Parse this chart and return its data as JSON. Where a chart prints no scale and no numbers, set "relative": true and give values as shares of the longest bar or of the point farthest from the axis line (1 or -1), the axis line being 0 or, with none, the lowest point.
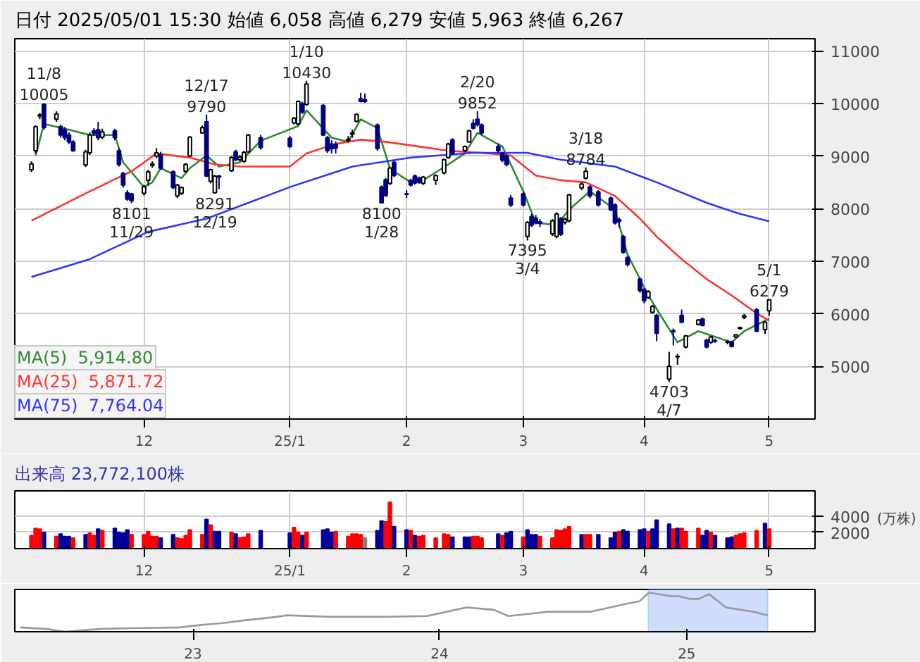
{
  "chart_data": [
    {
      "type": "candlestick",
      "title": "日付 2025/05/01 15:30 始値 6,058 高値 6,279 安値 5,963 終値 6,267",
      "x": [
        "2024-11-05",
        "2024-11-06",
        "2024-11-07",
        "2024-11-08",
        "2024-11-11",
        "2024-11-12",
        "2024-11-13",
        "2024-11-14",
        "2024-11-15",
        "2024-11-18",
        "2024-11-19",
        "2024-11-20",
        "2024-11-21",
        "2024-11-22",
        "2024-11-25",
        "2024-11-26",
        "2024-11-27",
        "2024-11-28",
        "2024-11-29",
        "2024-12-02",
        "2024-12-03",
        "2024-12-04",
        "2024-12-05",
        "2024-12-06",
        "2024-12-09",
        "2024-12-10",
        "2024-12-11",
        "2024-12-12",
        "2024-12-13",
        "2024-12-16",
        "2024-12-17",
        "2024-12-18",
        "2024-12-19",
        "2024-12-20",
        "2024-12-23",
        "2024-12-24",
        "2024-12-25",
        "2024-12-26",
        "2024-12-27",
        "2024-12-30",
        "2025-01-06",
        "2025-01-07",
        "2025-01-08",
        "2025-01-09",
        "2025-01-10",
        "2025-01-14",
        "2025-01-15",
        "2025-01-16",
        "2025-01-17",
        "2025-01-20",
        "2025-01-21",
        "2025-01-22",
        "2025-01-23",
        "2025-01-24",
        "2025-01-27",
        "2025-01-28",
        "2025-01-29",
        "2025-01-30",
        "2025-01-31",
        "2025-02-03",
        "2025-02-04",
        "2025-02-05",
        "2025-02-06",
        "2025-02-07",
        "2025-02-10",
        "2025-02-12",
        "2025-02-13",
        "2025-02-14",
        "2025-02-17",
        "2025-02-18",
        "2025-02-19",
        "2025-02-20",
        "2025-02-21",
        "2025-02-25",
        "2025-02-26",
        "2025-02-27",
        "2025-02-28",
        "2025-03-03",
        "2025-03-04",
        "2025-03-05",
        "2025-03-06",
        "2025-03-07",
        "2025-03-10",
        "2025-03-11",
        "2025-03-12",
        "2025-03-13",
        "2025-03-14",
        "2025-03-17",
        "2025-03-18",
        "2025-03-19",
        "2025-03-21",
        "2025-03-24",
        "2025-03-25",
        "2025-03-26",
        "2025-03-27",
        "2025-03-28",
        "2025-03-31",
        "2025-04-01",
        "2025-04-02",
        "2025-04-03",
        "2025-04-04",
        "2025-04-07",
        "2025-04-08",
        "2025-04-09",
        "2025-04-10",
        "2025-04-11",
        "2025-04-14",
        "2025-04-15",
        "2025-04-16",
        "2025-04-17",
        "2025-04-18",
        "2025-04-21",
        "2025-04-22",
        "2025-04-23",
        "2025-04-24",
        "2025-04-25",
        "2025-04-28",
        "2025-04-30",
        "2025-05-01"
      ],
      "ohlc": [
        [
          8740,
          8900,
          8700,
          8850
        ],
        [
          9100,
          9580,
          9050,
          9560
        ],
        [
          9760,
          9820,
          9700,
          9780
        ],
        [
          9980,
          10005,
          9500,
          9540
        ],
        [
          9700,
          9850,
          9650,
          9800
        ],
        [
          9560,
          9600,
          9350,
          9400
        ],
        [
          9500,
          9550,
          9300,
          9350
        ],
        [
          9400,
          9450,
          9230,
          9270
        ],
        [
          9270,
          9300,
          9080,
          9100
        ],
        [
          8830,
          9120,
          8790,
          9080
        ],
        [
          9060,
          9450,
          9020,
          9400
        ],
        [
          9480,
          9530,
          9380,
          9430
        ],
        [
          9500,
          9650,
          9300,
          9350
        ],
        [
          9360,
          9520,
          9320,
          9460
        ],
        [
          9480,
          9520,
          9300,
          9350
        ],
        [
          9100,
          9150,
          8800,
          8840
        ],
        [
          8670,
          8700,
          8400,
          8450
        ],
        [
          8300,
          8350,
          8150,
          8180
        ],
        [
          8280,
          8300,
          8101,
          8150
        ],
        [
          8290,
          8450,
          8250,
          8420
        ],
        [
          8540,
          8740,
          8440,
          8700
        ],
        [
          8820,
          8900,
          8780,
          8850
        ],
        [
          9000,
          9150,
          8960,
          9060
        ],
        [
          9020,
          9080,
          8740,
          8770
        ],
        [
          8700,
          8730,
          8370,
          8400
        ],
        [
          8240,
          8470,
          8200,
          8450
        ],
        [
          8290,
          8420,
          8260,
          8400
        ],
        [
          8710,
          8870,
          8680,
          8840
        ],
        [
          9000,
          9380,
          8980,
          9360
        ],
        [
          9440,
          9580,
          9420,
          9540
        ],
        [
          9650,
          9790,
          8600,
          8620
        ],
        [
          8520,
          8760,
          8480,
          8740
        ],
        [
          8300,
          8640,
          8291,
          8620
        ],
        [
          8620,
          8640,
          8370,
          8600
        ],
        [
          8720,
          9000,
          8700,
          8970
        ],
        [
          9080,
          9120,
          8900,
          8930
        ],
        [
          8930,
          9020,
          8900,
          8980
        ],
        [
          8900,
          9100,
          8870,
          9070
        ],
        [
          9080,
          9420,
          9060,
          9400
        ],
        [
          9350,
          9400,
          9120,
          9160
        ],
        [
          9340,
          9380,
          9150,
          9180
        ],
        [
          9630,
          9740,
          9600,
          9720
        ],
        [
          9610,
          10060,
          9580,
          10040
        ],
        [
          10000,
          10030,
          9800,
          9830
        ],
        [
          9980,
          10430,
          9960,
          10370
        ],
        [
          9960,
          9990,
          9380,
          9400
        ],
        [
          9350,
          9380,
          9060,
          9100
        ],
        [
          9230,
          9300,
          9050,
          9140
        ],
        [
          9220,
          9280,
          9050,
          9150
        ],
        [
          9300,
          9380,
          9260,
          9320
        ],
        [
          9420,
          9500,
          9350,
          9440
        ],
        [
          9660,
          9810,
          9640,
          9790
        ],
        [
          10090,
          10200,
          10020,
          10040
        ],
        [
          10070,
          10190,
          10010,
          10040
        ],
        [
          9590,
          9620,
          9100,
          9140
        ],
        [
          8410,
          8440,
          8100,
          8110
        ],
        [
          8550,
          8580,
          8220,
          8250
        ],
        [
          8480,
          8800,
          8450,
          8770
        ],
        [
          8880,
          8920,
          8600,
          8630
        ],
        [
          8280,
          8350,
          8200,
          8270
        ],
        [
          8540,
          8570,
          8420,
          8450
        ],
        [
          8620,
          8650,
          8460,
          8490
        ],
        [
          8580,
          8610,
          8470,
          8500
        ],
        [
          8480,
          8620,
          8450,
          8600
        ],
        [
          8540,
          8650,
          8450,
          8630
        ],
        [
          8680,
          8950,
          8650,
          8930
        ],
        [
          8970,
          9250,
          8950,
          9230
        ],
        [
          9310,
          9340,
          9020,
          9050
        ],
        [
          9100,
          9200,
          9080,
          9180
        ],
        [
          9270,
          9500,
          9250,
          9480
        ],
        [
          9620,
          9700,
          9500,
          9530
        ],
        [
          9700,
          9852,
          9560,
          9600
        ],
        [
          9590,
          9620,
          9400,
          9440
        ],
        [
          9180,
          9240,
          9060,
          9100
        ],
        [
          9050,
          9080,
          8880,
          8920
        ],
        [
          9000,
          9030,
          8800,
          8840
        ],
        [
          8200,
          8260,
          8030,
          8070
        ],
        [
          8280,
          8320,
          8040,
          8070
        ],
        [
          7470,
          7760,
          7395,
          7740
        ],
        [
          7850,
          7900,
          7650,
          7690
        ],
        [
          7820,
          7880,
          7700,
          7730
        ],
        [
          7750,
          7800,
          7650,
          7720
        ],
        [
          7520,
          7800,
          7480,
          7770
        ],
        [
          7470,
          7930,
          7440,
          7900
        ],
        [
          7810,
          7840,
          7480,
          7510
        ],
        [
          7740,
          7830,
          7700,
          7800
        ],
        [
          7770,
          8280,
          7740,
          8260
        ],
        [
          8390,
          8500,
          8350,
          8470
        ],
        [
          8580,
          8784,
          8550,
          8710
        ],
        [
          8410,
          8450,
          8200,
          8240
        ],
        [
          8320,
          8350,
          8040,
          8070
        ],
        [
          8200,
          8230,
          7950,
          7980
        ],
        [
          8070,
          8100,
          7700,
          7730
        ],
        [
          7790,
          7830,
          7640,
          7760
        ],
        [
          7470,
          7500,
          7140,
          7170
        ],
        [
          7070,
          7100,
          6900,
          6940
        ],
        [
          6660,
          6690,
          6400,
          6440
        ],
        [
          6460,
          6490,
          6200,
          6250
        ],
        [
          6310,
          6450,
          6280,
          6420
        ],
        [
          6030,
          6170,
          6000,
          6140
        ],
        [
          5970,
          6000,
          5480,
          5630
        ],
        [
          4760,
          5280,
          4703,
          5000
        ],
        [
          5680,
          5720,
          5400,
          5660
        ],
        [
          5180,
          5240,
          5030,
          5190
        ],
        [
          5970,
          6080,
          5820,
          5840
        ],
        [
          5370,
          5600,
          5340,
          5580
        ],
        [
          5800,
          5900,
          5780,
          5880
        ],
        [
          5900,
          5930,
          5760,
          5780
        ],
        [
          5500,
          5530,
          5340,
          5370
        ],
        [
          5460,
          5580,
          5430,
          5560
        ],
        [
          5490,
          5530,
          5450,
          5480
        ],
        [
          5460,
          5500,
          5420,
          5470
        ],
        [
          5460,
          5490,
          5360,
          5380
        ],
        [
          5560,
          5620,
          5540,
          5600
        ],
        [
          5720,
          5760,
          5700,
          5740
        ],
        [
          5930,
          6000,
          5900,
          5960
        ],
        [
          6080,
          6110,
          5650,
          5670
        ],
        [
          5700,
          5860,
          5620,
          5840
        ],
        [
          6058,
          6279,
          5963,
          6267
        ]
      ],
      "series": [
        {
          "name": "MA(5)  5,914.80",
          "type": "line",
          "color": "#2e8b2e",
          "x": [
            "2024-11-06",
            "2024-11-08",
            "2024-11-13",
            "2024-11-19",
            "2024-11-25",
            "2024-11-27",
            "2024-12-02",
            "2024-12-04",
            "2024-12-06",
            "2024-12-11",
            "2024-12-13",
            "2024-12-17",
            "2024-12-20",
            "2024-12-25",
            "2024-12-30",
            "2025-01-08",
            "2025-01-10",
            "2025-01-16",
            "2025-01-20",
            "2025-01-23",
            "2025-01-27",
            "2025-01-30",
            "2025-02-04",
            "2025-02-07",
            "2025-02-13",
            "2025-02-17",
            "2025-02-20",
            "2025-02-26",
            "2025-03-03",
            "2025-03-06",
            "2025-03-11",
            "2025-03-14",
            "2025-03-19",
            "2025-03-25",
            "2025-03-28",
            "2025-04-02",
            "2025-04-07",
            "2025-04-09",
            "2025-04-14",
            "2025-04-17",
            "2025-04-22",
            "2025-04-25",
            "2025-05-01"
          ],
          "values": [
            9010,
            9610,
            9520,
            9400,
            9400,
            8880,
            8410,
            8500,
            8770,
            8580,
            8770,
            9010,
            8800,
            8880,
            9290,
            9570,
            9870,
            9350,
            9270,
            9700,
            9530,
            8760,
            8500,
            8540,
            8840,
            9050,
            9440,
            9180,
            8330,
            7730,
            7690,
            7980,
            8330,
            7980,
            7130,
            6350,
            5710,
            5460,
            5670,
            5590,
            5460,
            5670,
            5910
          ]
        },
        {
          "name": "MA(25)  5,871.72",
          "type": "line",
          "color": "#ff3333",
          "x": [
            "2024-11-05",
            "2024-11-19",
            "2024-11-29",
            "2024-12-05",
            "2024-12-13",
            "2024-12-19",
            "2024-12-25",
            "2025-01-06",
            "2025-01-10",
            "2025-01-17",
            "2025-01-23",
            "2025-01-29",
            "2025-02-06",
            "2025-02-13",
            "2025-02-21",
            "2025-02-28",
            "2025-03-06",
            "2025-03-12",
            "2025-03-18",
            "2025-03-25",
            "2025-03-31",
            "2025-04-04",
            "2025-04-10",
            "2025-04-16",
            "2025-04-22",
            "2025-04-28",
            "2025-05-01"
          ],
          "values": [
            7770,
            8330,
            8710,
            9050,
            8970,
            8840,
            8800,
            8800,
            9050,
            9230,
            9310,
            9270,
            9180,
            9100,
            9060,
            9010,
            8630,
            8540,
            8500,
            8240,
            7810,
            7470,
            7040,
            6660,
            6350,
            6010,
            5870
          ]
        },
        {
          "name": "MA(75)  7,764.04",
          "type": "line",
          "color": "#3333ff",
          "x": [
            "2024-11-05",
            "2024-11-19",
            "2024-12-03",
            "2024-12-17",
            "2025-01-06",
            "2025-01-21",
            "2025-02-04",
            "2025-02-19",
            "2025-03-04",
            "2025-03-12",
            "2025-03-25",
            "2025-04-04",
            "2025-04-16",
            "2025-04-24",
            "2025-05-01"
          ],
          "values": [
            6700,
            7040,
            7560,
            7810,
            8410,
            8800,
            8970,
            9060,
            9060,
            8930,
            8800,
            8500,
            8110,
            7900,
            7760
          ]
        }
      ],
      "annotations": [
        {
          "text": "11/8\n10005",
          "x": "2024-11-08",
          "y": 10005
        },
        {
          "text": "8101\n11/29",
          "x": "2024-11-29",
          "y": 8101
        },
        {
          "text": "12/17\n9790",
          "x": "2024-12-17",
          "y": 9790
        },
        {
          "text": "8291\n12/19",
          "x": "2024-12-19",
          "y": 8291
        },
        {
          "text": "1/10\n10430",
          "x": "2025-01-10",
          "y": 10430
        },
        {
          "text": "8100\n1/28",
          "x": "2025-01-28",
          "y": 8100
        },
        {
          "text": "2/20\n9852",
          "x": "2025-02-20",
          "y": 9852
        },
        {
          "text": "7395\n3/4",
          "x": "2025-03-04",
          "y": 7395
        },
        {
          "text": "3/18\n8784",
          "x": "2025-03-18",
          "y": 8784
        },
        {
          "text": "4703\n4/7",
          "x": "2025-04-07",
          "y": 4703
        },
        {
          "text": "5/1\n6279",
          "x": "2025-05-01",
          "y": 6279
        }
      ],
      "xlim": [
        "2024-11-01",
        "2025-05-12"
      ],
      "ylim": [
        4000,
        11230
      ],
      "xticks": [
        {
          "value": "2024-12-02",
          "label": "12"
        },
        {
          "value": "2025-01-06",
          "label": "25/1"
        },
        {
          "value": "2025-02-03",
          "label": "2"
        },
        {
          "value": "2025-03-03",
          "label": "3"
        },
        {
          "value": "2025-04-01",
          "label": "4"
        },
        {
          "value": "2025-05-01",
          "label": "5"
        }
      ],
      "yticks": [
        5000,
        6000,
        7000,
        8000,
        9000,
        10000,
        11000
      ],
      "grid": true,
      "legend": "bottom left"
    },
    {
      "type": "bar",
      "title": "出来高 23,772,100株",
      "ylabel": "(万株)",
      "x": [
        "2024-11-05",
        "2024-11-06",
        "2024-11-07",
        "2024-11-08",
        "2024-11-11",
        "2024-11-12",
        "2024-11-13",
        "2024-11-14",
        "2024-11-15",
        "2024-11-18",
        "2024-11-19",
        "2024-11-20",
        "2024-11-21",
        "2024-11-22",
        "2024-11-25",
        "2024-11-26",
        "2024-11-27",
        "2024-11-28",
        "2024-11-29",
        "2024-12-02",
        "2024-12-03",
        "2024-12-04",
        "2024-12-05",
        "2024-12-06",
        "2024-12-09",
        "2024-12-10",
        "2024-12-11",
        "2024-12-12",
        "2024-12-13",
        "2024-12-16",
        "2024-12-17",
        "2024-12-18",
        "2024-12-19",
        "2024-12-20",
        "2024-12-23",
        "2024-12-24",
        "2024-12-25",
        "2024-12-26",
        "2024-12-27",
        "2024-12-30",
        "2025-01-06",
        "2025-01-07",
        "2025-01-08",
        "2025-01-09",
        "2025-01-10",
        "2025-01-14",
        "2025-01-15",
        "2025-01-16",
        "2025-01-17",
        "2025-01-20",
        "2025-01-21",
        "2025-01-22",
        "2025-01-23",
        "2025-01-24",
        "2025-01-27",
        "2025-01-28",
        "2025-01-29",
        "2025-01-30",
        "2025-01-31",
        "2025-02-03",
        "2025-02-04",
        "2025-02-05",
        "2025-02-06",
        "2025-02-07",
        "2025-02-10",
        "2025-02-12",
        "2025-02-13",
        "2025-02-14",
        "2025-02-17",
        "2025-02-18",
        "2025-02-19",
        "2025-02-20",
        "2025-02-21",
        "2025-02-25",
        "2025-02-26",
        "2025-02-27",
        "2025-02-28",
        "2025-03-03",
        "2025-03-04",
        "2025-03-05",
        "2025-03-06",
        "2025-03-07",
        "2025-03-10",
        "2025-03-11",
        "2025-03-12",
        "2025-03-13",
        "2025-03-14",
        "2025-03-17",
        "2025-03-18",
        "2025-03-19",
        "2025-03-21",
        "2025-03-24",
        "2025-03-25",
        "2025-03-26",
        "2025-03-27",
        "2025-03-28",
        "2025-03-31",
        "2025-04-01",
        "2025-04-02",
        "2025-04-03",
        "2025-04-04",
        "2025-04-07",
        "2025-04-08",
        "2025-04-09",
        "2025-04-10",
        "2025-04-11",
        "2025-04-14",
        "2025-04-15",
        "2025-04-16",
        "2025-04-17",
        "2025-04-18",
        "2025-04-21",
        "2025-04-22",
        "2025-04-23",
        "2025-04-24",
        "2025-04-25",
        "2025-04-28",
        "2025-04-30",
        "2025-05-01"
      ],
      "values": [
        1600,
        2500,
        2400,
        2000,
        1500,
        1800,
        1500,
        1500,
        1300,
        1700,
        1900,
        1600,
        2400,
        2200,
        2500,
        2000,
        1900,
        2300,
        1700,
        1700,
        2100,
        1500,
        1500,
        1300,
        1700,
        1300,
        1200,
        1600,
        2300,
        1700,
        3600,
        2900,
        2100,
        2100,
        2000,
        1800,
        1300,
        1400,
        1800,
        2200,
        1900,
        2600,
        2000,
        1600,
        2000,
        2300,
        2400,
        2000,
        2100,
        1500,
        1800,
        1800,
        1700,
        1300,
        2200,
        3400,
        3300,
        5700,
        2700,
        2300,
        2200,
        1600,
        1500,
        1600,
        1300,
        1800,
        1700,
        1400,
        1400,
        1400,
        1500,
        1500,
        1300,
        1800,
        1600,
        1900,
        2100,
        1400,
        2300,
        1700,
        1700,
        1500,
        1300,
        2300,
        2200,
        2400,
        2700,
        1700,
        1700,
        1700,
        1700,
        1300,
        2000,
        2100,
        2300,
        2100,
        2300,
        2400,
        2100,
        2400,
        3500,
        3000,
        2400,
        2500,
        2500,
        2100,
        2500,
        1600,
        2200,
        2000,
        1600,
        1300,
        1400,
        1600,
        1800,
        1900,
        2200,
        3100,
        2400
      ],
      "colors": [
        "#ff0000",
        "#ff0000",
        "#ff0000",
        "#000099",
        "#ff0000",
        "#000099",
        "#000099",
        "#000099",
        "#ff0000",
        "#000099",
        "#ff0000",
        "#ff0000",
        "#000099",
        "#ff0000",
        "#000099",
        "#000099",
        "#000099",
        "#000099",
        "#ff0000",
        "#ff0000",
        "#ff0000",
        "#ff0000",
        "#ff0000",
        "#000099",
        "#000099",
        "#ff0000",
        "#ff0000",
        "#ff0000",
        "#ff0000",
        "#ff0000",
        "#000099",
        "#ff0000",
        "#000099",
        "#000099",
        "#ff0000",
        "#000099",
        "#ff0000",
        "#ff0000",
        "#ff0000",
        "#000099",
        "#000099",
        "#ff0000",
        "#ff0000",
        "#000099",
        "#ff0000",
        "#000099",
        "#000099",
        "#000099",
        "#ff0000",
        "#ff0000",
        "#ff0000",
        "#ff0000",
        "#ff0000",
        "#808080",
        "#000099",
        "#000099",
        "#ff0000",
        "#ff0000",
        "#000099",
        "#000099",
        "#ff0000",
        "#000099",
        "#ff0000",
        "#ff0000",
        "#ff0000",
        "#ff0000",
        "#ff0000",
        "#000099",
        "#000099",
        "#000099",
        "#ff0000",
        "#ff0000",
        "#ff0000",
        "#000099",
        "#ff0000",
        "#000099",
        "#000099",
        "#ff0000",
        "#000099",
        "#000099",
        "#000099",
        "#ff0000",
        "#ff0000",
        "#ff0000",
        "#ff0000",
        "#ff0000",
        "#ff0000",
        "#000099",
        "#ff0000",
        "#ff0000",
        "#000099",
        "#000099",
        "#000099",
        "#ff0000",
        "#000099",
        "#000099",
        "#000099",
        "#000099",
        "#ff0000",
        "#000099",
        "#000099",
        "#000099",
        "#ff0000",
        "#000099",
        "#ff0000",
        "#ff0000",
        "#ff0000",
        "#000099",
        "#000099",
        "#ff0000",
        "#000099",
        "#000099",
        "#000099",
        "#ff0000",
        "#ff0000",
        "#ff0000",
        "#ff0000",
        "#000099",
        "#ff0000"
      ],
      "xlim": [
        "2024-11-01",
        "2025-05-12"
      ],
      "ylim": [
        0,
        7100
      ],
      "xticks": [
        {
          "value": "2024-12-02",
          "label": "12"
        },
        {
          "value": "2025-01-06",
          "label": "25/1"
        },
        {
          "value": "2025-02-03",
          "label": "2"
        },
        {
          "value": "2025-03-03",
          "label": "3"
        },
        {
          "value": "2025-04-01",
          "label": "4"
        },
        {
          "value": "2025-05-01",
          "label": "5"
        }
      ],
      "yticks": [
        2000,
        4000
      ],
      "grid": true
    },
    {
      "type": "line",
      "relative": true,
      "series": [
        {
          "color": "#999999",
          "x": [
            "2022-04-20",
            "2022-05-30",
            "2022-06-25",
            "2022-08-15",
            "2022-10-01",
            "2022-12-13",
            "2023-01-05",
            "2023-02-14",
            "2023-03-18",
            "2023-05-05",
            "2023-05-19",
            "2023-07-24",
            "2023-10-12",
            "2023-12-13",
            "2024-01-01",
            "2024-02-10",
            "2024-03-21",
            "2024-04-12",
            "2024-06-10",
            "2024-08-11",
            "2024-10-08",
            "2024-10-23",
            "2024-11-06",
            "2024-12-09",
            "2024-12-20",
            "2025-01-05",
            "2025-01-19",
            "2025-02-03",
            "2025-02-28",
            "2025-04-10",
            "2025-05-01"
          ],
          "values": [
            0.11,
            0.07,
            0,
            0.07,
            0.09,
            0.11,
            0.16,
            0.22,
            0.29,
            0.38,
            0.42,
            0.38,
            0.38,
            0.4,
            0.47,
            0.62,
            0.56,
            0.4,
            0.51,
            0.51,
            0.73,
            0.78,
            1,
            0.91,
            0.91,
            0.84,
            0.84,
            0.96,
            0.62,
            0.51,
            0.42
          ]
        }
      ],
      "bands": [
        {
          "axis": "x",
          "from": "2024-11-05",
          "to": "2025-05-01",
          "color": "#b3c6ff"
        }
      ],
      "xlim": [
        "2022-04-12",
        "2025-07-10"
      ],
      "xticks": [
        {
          "value": "2023-01-01",
          "label": "23"
        },
        {
          "value": "2024-01-01",
          "label": "24"
        },
        {
          "value": "2025-01-01",
          "label": "25"
        }
      ]
    }
  ]
}
